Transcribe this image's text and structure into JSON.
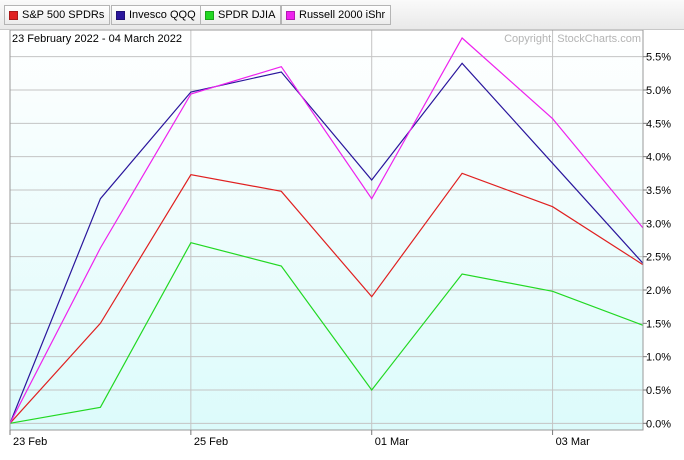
{
  "legend": [
    {
      "label": "S&P 500 SPDRs",
      "color": "#e02020"
    },
    {
      "label": "Invesco QQQ",
      "color": "#2a159c"
    },
    {
      "label": "SPDR DJIA",
      "color": "#22d822"
    },
    {
      "label": "Russell 2000 iShr",
      "color": "#ee22ee"
    }
  ],
  "date_range": "23 February 2022 - 04 March 2022",
  "copyright": "Copyright, StockCharts.com",
  "chart_data": {
    "type": "line",
    "x": [
      "2022-02-23",
      "2022-02-24",
      "2022-02-25",
      "2022-02-28",
      "2022-03-01",
      "2022-03-02",
      "2022-03-03",
      "2022-03-04"
    ],
    "x_tick_labels": [
      {
        "x": "2022-02-23",
        "label": "23  Feb"
      },
      {
        "x": "2022-02-25",
        "label": "25  Feb"
      },
      {
        "x": "2022-03-01",
        "label": "01  Mar"
      },
      {
        "x": "2022-03-03",
        "label": "03  Mar"
      }
    ],
    "y_ticks": [
      {
        "value": 0.0,
        "label": "0.0%"
      },
      {
        "value": 0.5,
        "label": "0.5%"
      },
      {
        "value": 1.0,
        "label": "1.0%"
      },
      {
        "value": 1.5,
        "label": "1.5%"
      },
      {
        "value": 2.0,
        "label": "2.0%"
      },
      {
        "value": 2.5,
        "label": "2.5%"
      },
      {
        "value": 3.0,
        "label": "3.0%"
      },
      {
        "value": 3.5,
        "label": "3.5%"
      },
      {
        "value": 4.0,
        "label": "4.0%"
      },
      {
        "value": 4.5,
        "label": "4.5%"
      },
      {
        "value": 5.0,
        "label": "5.0%"
      },
      {
        "value": 5.5,
        "label": "5.5%"
      }
    ],
    "ylim": [
      -0.1,
      5.9
    ],
    "y_axis_side": "right",
    "grid": true,
    "legend_position": "top",
    "series": [
      {
        "name": "S&P 500 SPDRs",
        "color": "#e02020",
        "values": [
          0.0,
          1.5,
          3.73,
          3.48,
          1.9,
          3.75,
          3.25,
          2.38
        ]
      },
      {
        "name": "Invesco QQQ",
        "color": "#2a159c",
        "values": [
          0.0,
          3.37,
          4.97,
          5.27,
          3.65,
          5.4,
          3.9,
          2.4
        ]
      },
      {
        "name": "SPDR DJIA",
        "color": "#22d822",
        "values": [
          0.0,
          0.24,
          2.71,
          2.36,
          0.5,
          2.24,
          1.98,
          1.47
        ]
      },
      {
        "name": "Russell 2000 iShr",
        "color": "#ee22ee",
        "values": [
          0.0,
          2.63,
          4.94,
          5.35,
          3.37,
          5.78,
          4.57,
          2.93
        ]
      }
    ]
  }
}
